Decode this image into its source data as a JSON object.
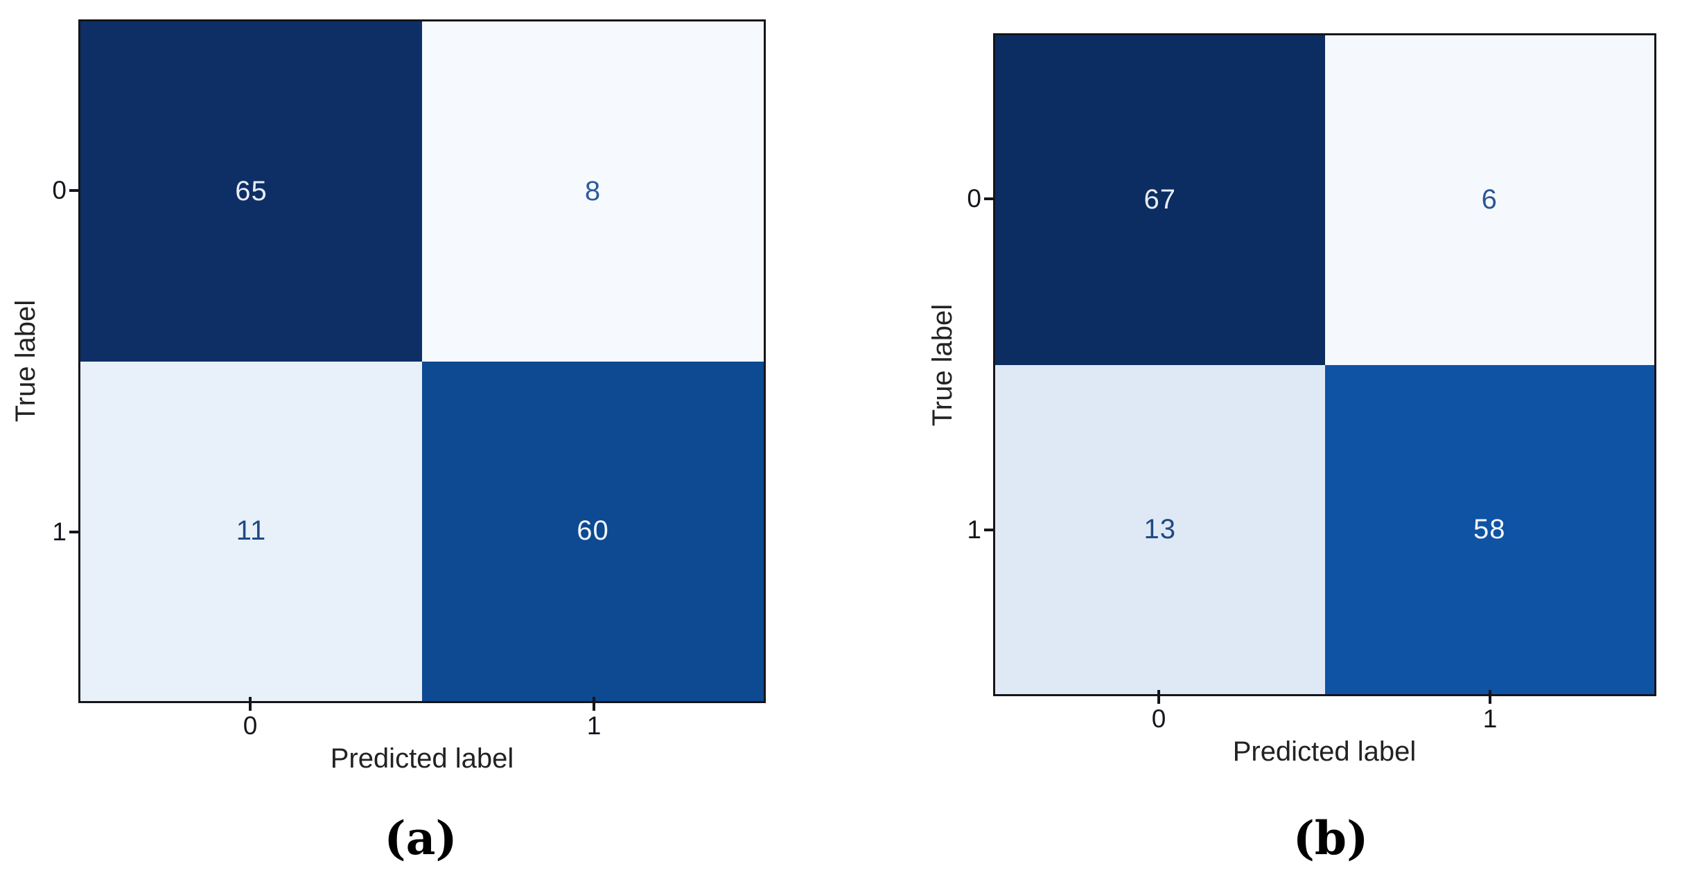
{
  "chart_data": [
    {
      "type": "heatmap",
      "id": "a",
      "caption": "(a)",
      "xlabel": "Predicted label",
      "ylabel": "True label",
      "x_tick_labels": [
        "0",
        "1"
      ],
      "y_tick_labels": [
        "0",
        "1"
      ],
      "categories_x": [
        "0",
        "1"
      ],
      "categories_y": [
        "0",
        "1"
      ],
      "matrix": [
        [
          65,
          8
        ],
        [
          11,
          60
        ]
      ],
      "colormap": "Blues",
      "value_range": [
        8,
        65
      ],
      "cell_colors": [
        [
          "#0e2f66",
          "#f6f9fe"
        ],
        [
          "#e8f0fa",
          "#0d4a91"
        ]
      ],
      "cell_text_colors": [
        [
          "#e9edf4",
          "#2d5b9c"
        ],
        [
          "#1e4a85",
          "#f2f6fc"
        ]
      ]
    },
    {
      "type": "heatmap",
      "id": "b",
      "caption": "(b)",
      "xlabel": "Predicted label",
      "ylabel": "True label",
      "x_tick_labels": [
        "0",
        "1"
      ],
      "y_tick_labels": [
        "0",
        "1"
      ],
      "categories_x": [
        "0",
        "1"
      ],
      "categories_y": [
        "0",
        "1"
      ],
      "matrix": [
        [
          67,
          6
        ],
        [
          13,
          58
        ]
      ],
      "colormap": "Blues",
      "value_range": [
        6,
        67
      ],
      "cell_colors": [
        [
          "#0c2d62",
          "#f5f9fe"
        ],
        [
          "#dfe9f5",
          "#0f53a5"
        ]
      ],
      "cell_text_colors": [
        [
          "#e9edf4",
          "#2a5694"
        ],
        [
          "#1e4a85",
          "#f2f6fc"
        ]
      ]
    }
  ],
  "figure": {
    "axis_color": "#15151c",
    "background": "#ffffff"
  }
}
